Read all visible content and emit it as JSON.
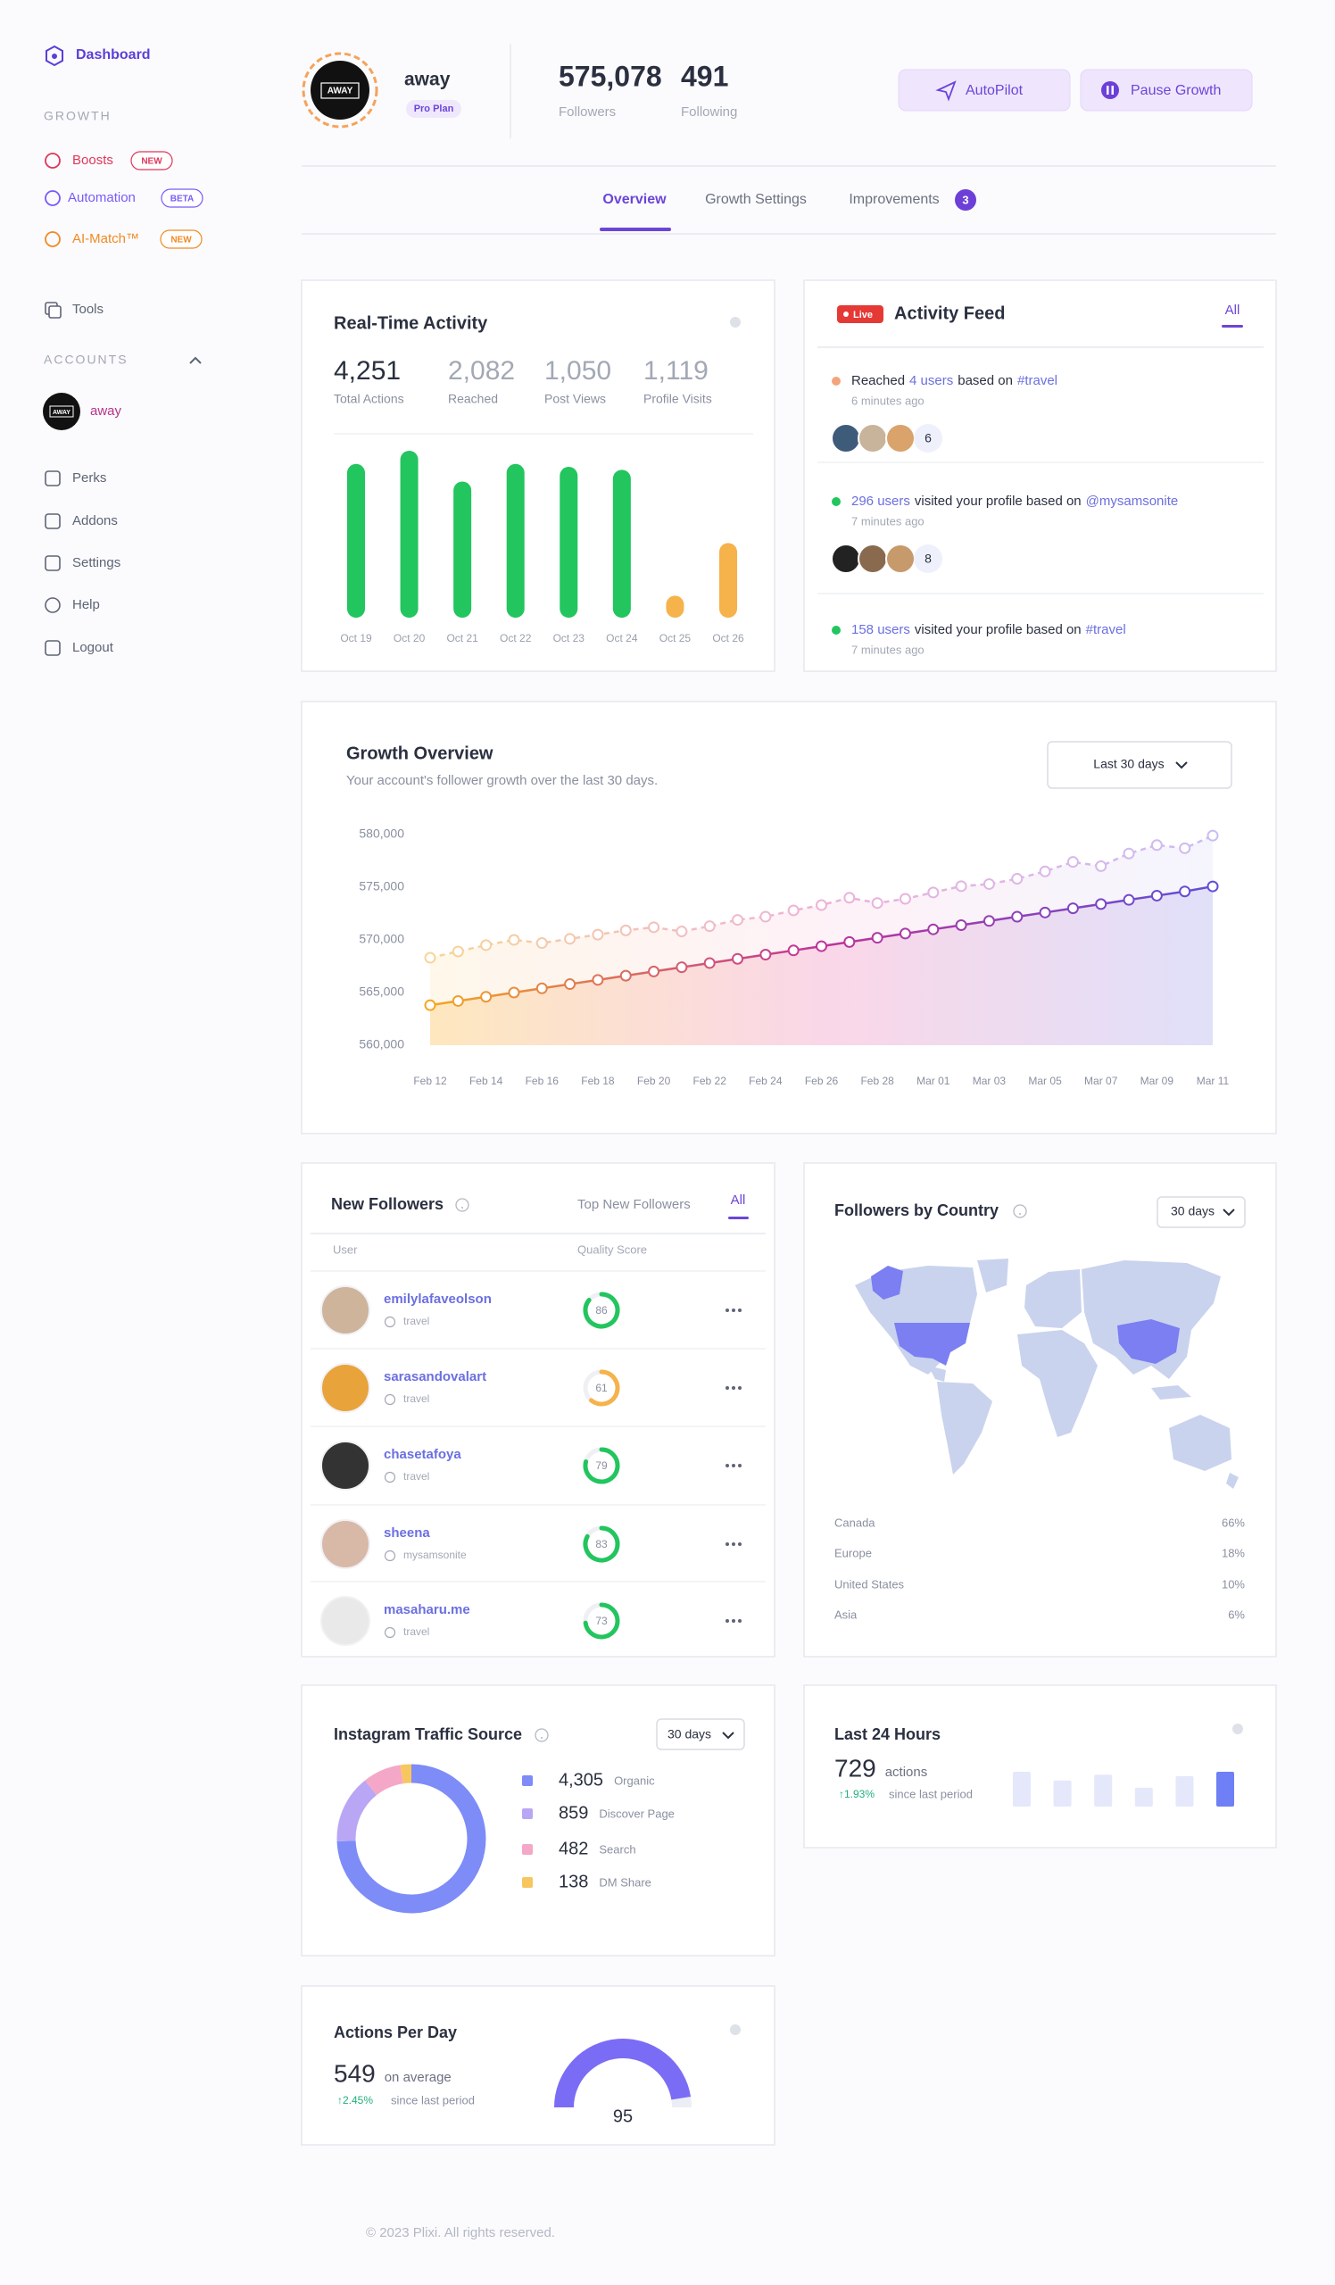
{
  "sidebar": {
    "brand": "Dashboard",
    "growth_heading": "GROWTH",
    "growth_items": [
      {
        "label": "Boosts",
        "badge": "NEW",
        "color": "#e0365a"
      },
      {
        "label": "Automation",
        "badge": "BETA",
        "color": "#7a5af5"
      },
      {
        "label": "AI-Match™",
        "badge": "NEW",
        "color": "#f08a24"
      }
    ],
    "tools": "Tools",
    "accounts_heading": "ACCOUNTS",
    "account": {
      "logo": "AWAY",
      "name": "away"
    },
    "items": [
      "Perks",
      "Addons",
      "Settings",
      "Help",
      "Logout"
    ]
  },
  "header": {
    "logo": "AWAY",
    "name": "away",
    "plan": "Pro Plan",
    "stats": [
      {
        "value": "575,078",
        "label": "Followers"
      },
      {
        "value": "491",
        "label": "Following"
      }
    ],
    "buttons": [
      "AutoPilot",
      "Pause Growth"
    ]
  },
  "tabs": {
    "items": [
      "Overview",
      "Growth Settings",
      "Improvements"
    ],
    "badge": "3"
  },
  "realtime": {
    "title": "Real-Time Activity",
    "metrics": [
      {
        "value": "4,251",
        "label": "Total Actions"
      },
      {
        "value": "2,082",
        "label": "Reached"
      },
      {
        "value": "1,050",
        "label": "Post Views"
      },
      {
        "value": "1,119",
        "label": "Profile Visits"
      }
    ],
    "chart": {
      "type": "bar",
      "categories": [
        "Oct 19",
        "Oct 20",
        "Oct 21",
        "Oct 22",
        "Oct 23",
        "Oct 24",
        "Oct 25",
        "Oct 26"
      ],
      "values": [
        105,
        114,
        93,
        105,
        103,
        101,
        15,
        51
      ],
      "colors": [
        "#22c55e",
        "#22c55e",
        "#22c55e",
        "#22c55e",
        "#22c55e",
        "#22c55e",
        "#f6b24b",
        "#f6b24b"
      ]
    }
  },
  "feed": {
    "live": "Live",
    "title": "Activity Feed",
    "filter": "All",
    "items": [
      {
        "status_color": "#f4a47c",
        "prefix": "Reached",
        "count": "4 users",
        "text": "based on",
        "tag": "#travel",
        "time": "6 minutes ago",
        "more": "6"
      },
      {
        "status_color": "#22c55e",
        "count": "296 users",
        "text": "visited your profile based on",
        "tag": "@mysamsonite",
        "time": "7 minutes ago",
        "more": "8"
      },
      {
        "status_color": "#22c55e",
        "count": "158 users",
        "text": "visited your profile based on",
        "tag": "#travel",
        "time": "7 minutes ago"
      }
    ]
  },
  "growth": {
    "title": "Growth Overview",
    "subtitle": "Your account's follower growth over the last 30 days.",
    "range": "Last 30 days",
    "chart": {
      "type": "line",
      "categories": [
        "Feb 12",
        null,
        "Feb 14",
        null,
        "Feb 16",
        null,
        "Feb 18",
        null,
        "Feb 20",
        null,
        "Feb 22",
        null,
        "Feb 24",
        null,
        "Feb 26",
        null,
        "Feb 28",
        null,
        "Mar 01",
        null,
        "Mar 03",
        null,
        "Mar 05",
        null,
        "Mar 07",
        null,
        "Mar 09",
        null,
        "Mar 11"
      ],
      "series": [
        {
          "dashed": true,
          "colors": [
            "#f7d596",
            "#eeb1d8",
            "#cbbcf3"
          ],
          "values": [
            568300,
            568900,
            569500,
            570000,
            569700,
            570100,
            570500,
            570900,
            571200,
            570800,
            571300,
            571900,
            572200,
            572800,
            573300,
            574000,
            573500,
            573900,
            574500,
            575100,
            575300,
            575800,
            576500,
            577400,
            577000,
            578200,
            579000,
            578700,
            579900
          ]
        },
        {
          "colors": [
            "#f5a623",
            "#c0339a",
            "#5f4fd8"
          ],
          "values": [
            563800,
            564200,
            564600,
            565000,
            565400,
            565800,
            566200,
            566600,
            567000,
            567400,
            567800,
            568200,
            568600,
            569000,
            569400,
            569800,
            570200,
            570600,
            571000,
            571400,
            571800,
            572200,
            572600,
            573000,
            573400,
            573800,
            574200,
            574600,
            575078
          ]
        }
      ],
      "area_colors": [
        "#fcd489",
        "#f6b6d4",
        "#c7c6f4"
      ],
      "ylim": [
        560000,
        580000
      ],
      "yticks": [
        {
          "value": 560000,
          "label": "560,000"
        },
        {
          "value": 565000,
          "label": "565,000"
        },
        {
          "value": 570000,
          "label": "570,000"
        },
        {
          "value": 575000,
          "label": "575,000"
        },
        {
          "value": 580000,
          "label": "580,000"
        }
      ]
    }
  },
  "followers": {
    "title": "New Followers",
    "tabs": [
      "Top New Followers",
      "All"
    ],
    "columns": [
      "User",
      "Quality Score"
    ],
    "rows": [
      {
        "user": "emilylafaveolson",
        "tag": "travel",
        "score": 86,
        "color": "#22c55e"
      },
      {
        "user": "sarasandovalart",
        "tag": "travel",
        "score": 61,
        "color": "#f6b24b"
      },
      {
        "user": "chasetafoya",
        "tag": "travel",
        "score": 79,
        "color": "#22c55e"
      },
      {
        "user": "sheena",
        "tag": "mysamsonite",
        "score": 83,
        "color": "#22c55e"
      },
      {
        "user": "masaharu.me",
        "tag": "travel",
        "score": 73,
        "color": "#22c55e"
      }
    ]
  },
  "countries": {
    "title": "Followers by Country",
    "range": "30 days",
    "categories": [
      "Canada",
      "Europe",
      "United States",
      "Asia"
    ],
    "values": [
      66,
      18,
      10,
      6
    ],
    "value_labels": [
      "66%",
      "18%",
      "10%",
      "6%"
    ]
  },
  "traffic": {
    "title": "Instagram Traffic Source",
    "range": "30 days",
    "chart": {
      "type": "pie",
      "categories": [
        "Organic",
        "Discover Page",
        "Search",
        "DM Share"
      ],
      "values": [
        4305,
        859,
        482,
        138
      ],
      "value_labels": [
        "4,305",
        "859",
        "482",
        "138"
      ],
      "colors": [
        "#7d8cf7",
        "#b9a6f5",
        "#f5a7c8",
        "#f7c65f"
      ]
    }
  },
  "last24": {
    "title": "Last 24 Hours",
    "value": "729",
    "unit": "actions",
    "change": "↑1.93%",
    "change_label": "since last period",
    "chart": {
      "type": "bar",
      "values": [
        24,
        18,
        22,
        13,
        21,
        24
      ],
      "colors": [
        "#e5e8fb",
        "#e5e8fb",
        "#e5e8fb",
        "#e5e8fb",
        "#e5e8fb",
        "#6f7ff5"
      ]
    }
  },
  "actions": {
    "title": "Actions Per Day",
    "value": "549",
    "unit": "on average",
    "change": "↑2.45%",
    "change_label": "since last period",
    "gauge": {
      "type": "gauge",
      "value": 95,
      "color": "#7b6cf6"
    }
  },
  "footer": "© 2023 Plixi. All rights reserved."
}
